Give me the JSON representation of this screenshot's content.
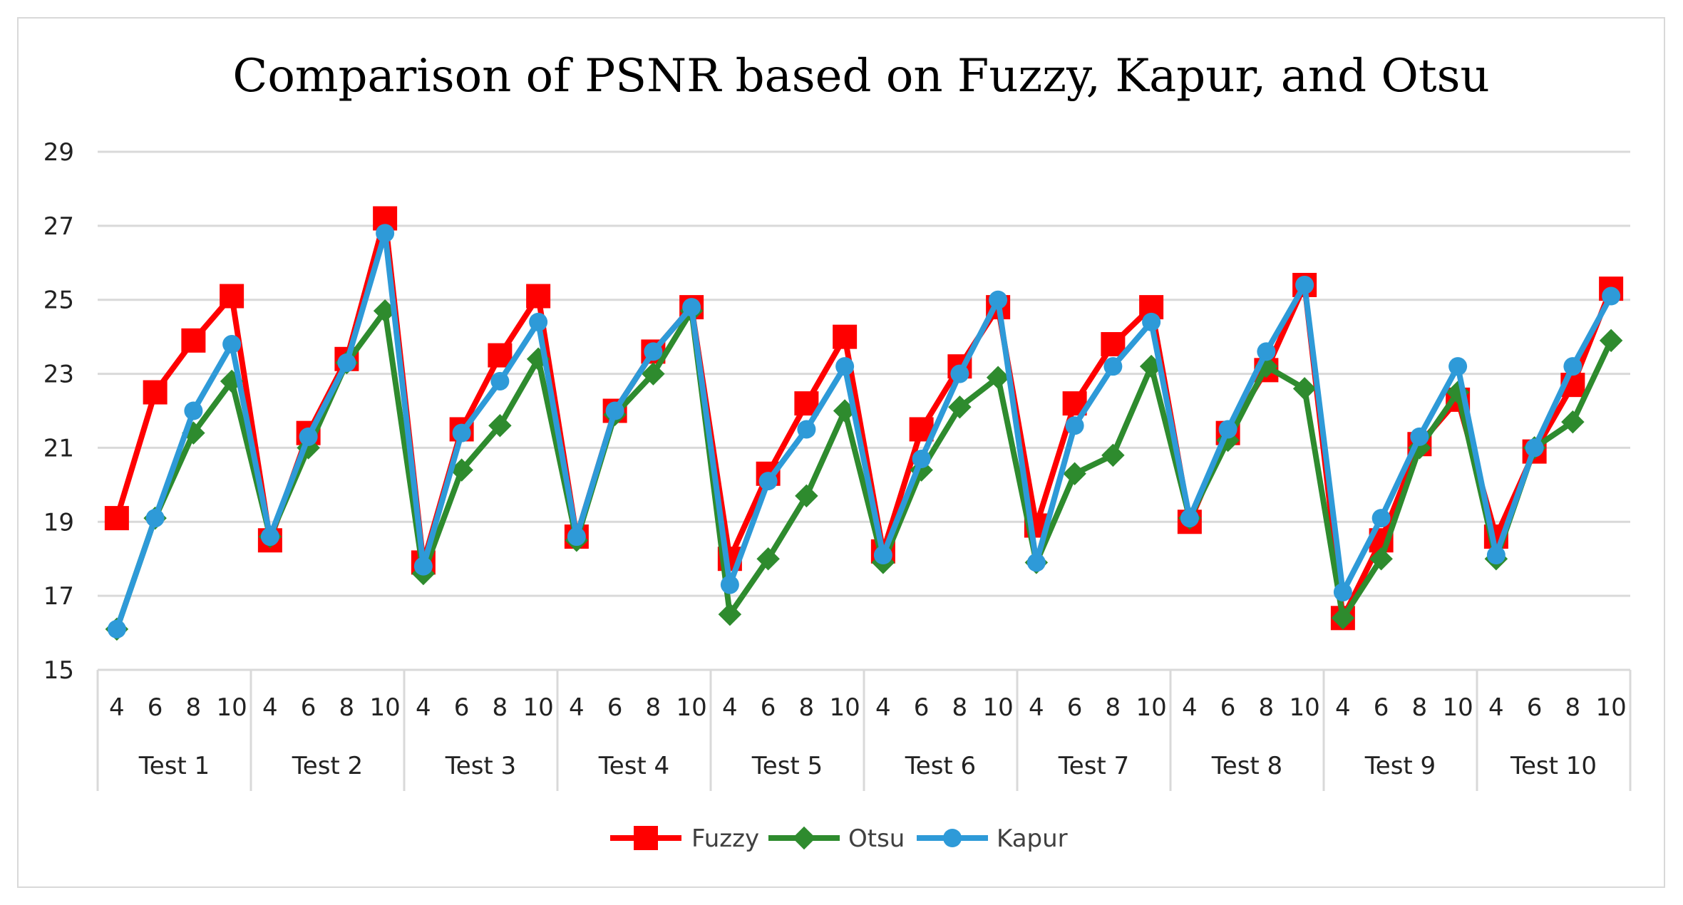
{
  "chart_data": {
    "type": "line",
    "title": "Comparison of PSNR based on Fuzzy, Kapur, and Otsu",
    "xlabel": "",
    "ylabel": "",
    "ylim": [
      15,
      29
    ],
    "yticks": [
      15,
      17,
      19,
      21,
      23,
      25,
      27,
      29
    ],
    "groups": [
      "Test 1",
      "Test 2",
      "Test 3",
      "Test 4",
      "Test 5",
      "Test 6",
      "Test 7",
      "Test 8",
      "Test 9",
      "Test 10"
    ],
    "subcategories": [
      "4",
      "6",
      "8",
      "10"
    ],
    "grid": true,
    "legend_position": "bottom",
    "series": [
      {
        "name": "Fuzzy",
        "color": "#ff0000",
        "marker": "square",
        "values": [
          19.1,
          22.5,
          23.9,
          25.1,
          18.5,
          21.4,
          23.4,
          27.2,
          17.9,
          21.5,
          23.5,
          25.1,
          18.6,
          22.0,
          23.6,
          24.8,
          18.0,
          20.3,
          22.2,
          24.0,
          18.2,
          21.5,
          23.2,
          24.8,
          18.9,
          22.2,
          23.8,
          24.8,
          19.0,
          21.4,
          23.1,
          25.4,
          16.4,
          18.5,
          21.1,
          22.3,
          18.6,
          20.9,
          22.7,
          25.3
        ]
      },
      {
        "name": "Otsu",
        "color": "#2e8b2e",
        "marker": "diamond",
        "values": [
          16.1,
          19.1,
          21.4,
          22.8,
          18.6,
          21.0,
          23.3,
          24.7,
          17.6,
          20.4,
          21.6,
          23.4,
          18.5,
          21.9,
          23.0,
          24.7,
          16.5,
          18.0,
          19.7,
          22.0,
          17.9,
          20.4,
          22.1,
          22.9,
          17.9,
          20.3,
          20.8,
          23.2,
          19.1,
          21.2,
          23.2,
          22.6,
          16.4,
          18.0,
          21.0,
          22.5,
          18.0,
          21.0,
          21.7,
          23.9
        ]
      },
      {
        "name": "Kapur",
        "color": "#2e9ad8",
        "marker": "circle",
        "values": [
          16.1,
          19.1,
          22.0,
          23.8,
          18.6,
          21.3,
          23.3,
          26.8,
          17.8,
          21.4,
          22.8,
          24.4,
          18.6,
          22.0,
          23.6,
          24.8,
          17.3,
          20.1,
          21.5,
          23.2,
          18.1,
          20.7,
          23.0,
          25.0,
          17.9,
          21.6,
          23.2,
          24.4,
          19.1,
          21.5,
          23.6,
          25.4,
          17.1,
          19.1,
          21.3,
          23.2,
          18.1,
          21.0,
          23.2,
          25.1
        ]
      }
    ]
  }
}
